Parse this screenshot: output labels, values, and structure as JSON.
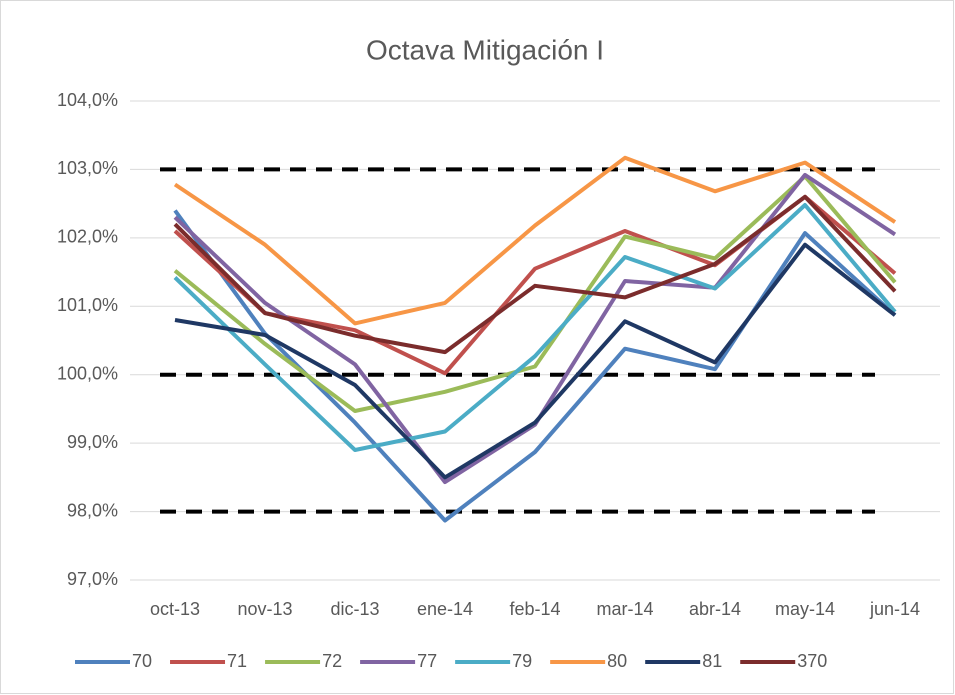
{
  "chart_data": {
    "type": "line",
    "title": "Octava Mitigación I",
    "categories": [
      "oct-13",
      "nov-13",
      "dic-13",
      "ene-14",
      "feb-14",
      "mar-14",
      "abr-14",
      "may-14",
      "jun-14"
    ],
    "series": [
      {
        "name": "70",
        "color": "#4f81bd",
        "values": [
          102.4,
          100.6,
          99.3,
          97.87,
          98.87,
          100.38,
          100.08,
          102.07,
          100.87
        ]
      },
      {
        "name": "71",
        "color": "#c0504d",
        "values": [
          102.1,
          100.9,
          100.65,
          100.02,
          101.55,
          102.1,
          101.6,
          102.6,
          101.48
        ]
      },
      {
        "name": "72",
        "color": "#9bbb59",
        "values": [
          101.52,
          100.45,
          99.47,
          99.75,
          100.12,
          102.02,
          101.7,
          102.9,
          101.35
        ]
      },
      {
        "name": "77",
        "color": "#8064a2",
        "values": [
          102.3,
          101.05,
          100.15,
          98.43,
          99.27,
          101.37,
          101.27,
          102.92,
          102.05
        ]
      },
      {
        "name": "79",
        "color": "#4bacc6",
        "values": [
          101.42,
          100.15,
          98.9,
          99.17,
          100.27,
          101.72,
          101.26,
          102.48,
          100.92
        ]
      },
      {
        "name": "80",
        "color": "#f79646",
        "values": [
          102.78,
          101.9,
          100.75,
          101.05,
          102.18,
          103.17,
          102.68,
          103.1,
          102.23
        ]
      },
      {
        "name": "81",
        "color": "#1f3864",
        "values": [
          100.8,
          100.58,
          99.85,
          98.5,
          99.3,
          100.78,
          100.18,
          101.9,
          100.87
        ]
      },
      {
        "name": "370",
        "color": "#7b2c2c",
        "values": [
          102.2,
          100.9,
          100.57,
          100.33,
          101.3,
          101.13,
          101.62,
          102.6,
          101.22
        ]
      }
    ],
    "reference_lines": {
      "values": [
        103,
        100,
        98
      ],
      "color": "#000000"
    },
    "ylim": [
      97,
      104
    ],
    "yticks": [
      {
        "value": 97,
        "label": "97,0%"
      },
      {
        "value": 98,
        "label": "98,0%"
      },
      {
        "value": 99,
        "label": "99,0%"
      },
      {
        "value": 100,
        "label": "100,0%"
      },
      {
        "value": 101,
        "label": "101,0%"
      },
      {
        "value": 102,
        "label": "102,0%"
      },
      {
        "value": 103,
        "label": "103,0%"
      },
      {
        "value": 104,
        "label": "104,0%"
      }
    ],
    "grid": true,
    "legend": "bottom"
  }
}
